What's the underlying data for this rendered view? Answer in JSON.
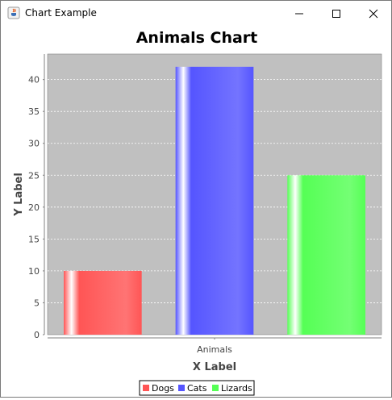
{
  "window": {
    "title": "Chart Example",
    "icon": "java-cup-icon"
  },
  "controls": {
    "minimize_icon": "minimize-icon",
    "maximize_icon": "maximize-icon",
    "close_icon": "close-icon"
  },
  "chart_data": {
    "type": "bar",
    "title": "Animals Chart",
    "xlabel": "X Label",
    "ylabel": "Y Label",
    "categories": [
      "Animals"
    ],
    "series": [
      {
        "name": "Dogs",
        "values": [
          10
        ],
        "color": "#ff5555"
      },
      {
        "name": "Cats",
        "values": [
          42
        ],
        "color": "#5555ff"
      },
      {
        "name": "Lizards",
        "values": [
          25
        ],
        "color": "#55ff55"
      }
    ],
    "ylim": [
      0,
      44
    ],
    "yticks": [
      0,
      5,
      10,
      15,
      20,
      25,
      30,
      35,
      40
    ],
    "grid": true,
    "legend_position": "bottom",
    "plot_background": "#c0c0c0"
  }
}
